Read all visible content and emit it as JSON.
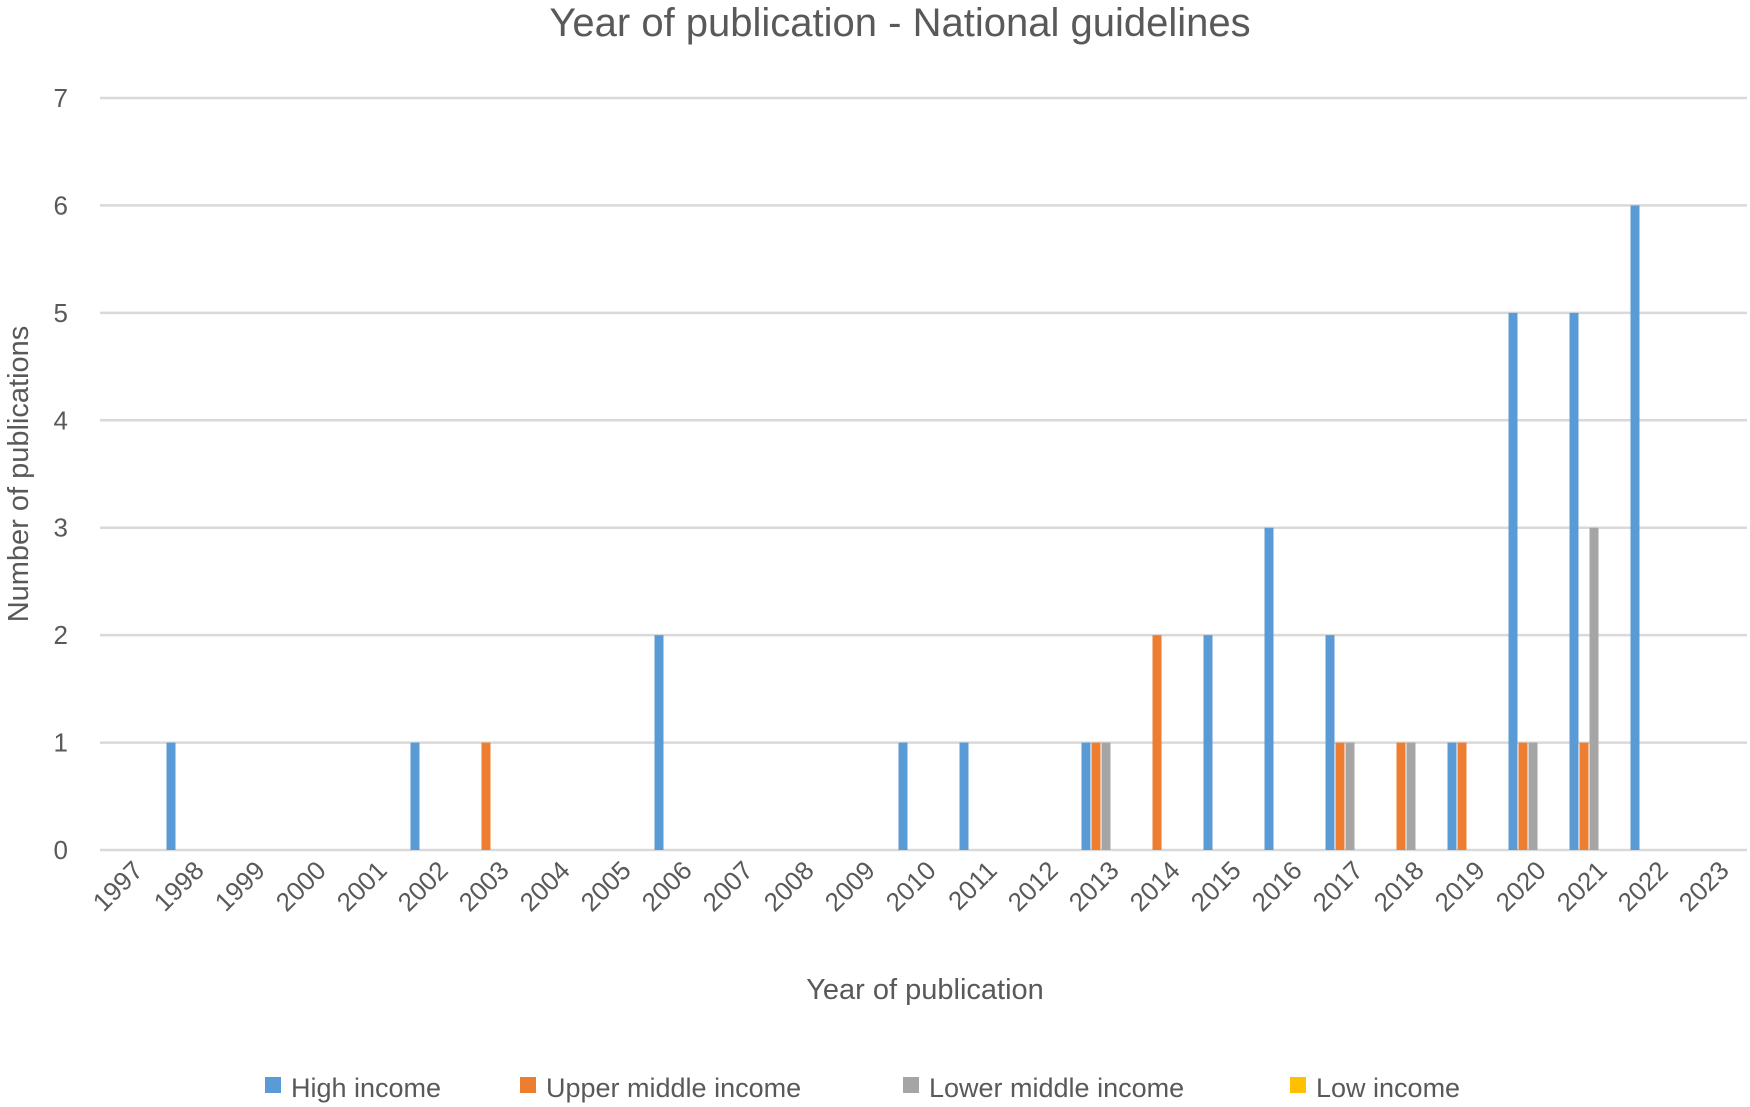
{
  "chart_data": {
    "type": "bar",
    "title": "Year of publication - National guidelines",
    "xlabel": "Year of publication",
    "ylabel": "Number of publications",
    "ylim": [
      0,
      7
    ],
    "yticks": [
      "0",
      "1",
      "2",
      "3",
      "4",
      "5",
      "6",
      "7"
    ],
    "grid": true,
    "legend_position": "bottom",
    "categories": [
      "1997",
      "1998",
      "1999",
      "2000",
      "2001",
      "2002",
      "2003",
      "2004",
      "2005",
      "2006",
      "2007",
      "2008",
      "2009",
      "2010",
      "2011",
      "2012",
      "2013",
      "2014",
      "2015",
      "2016",
      "2017",
      "2018",
      "2019",
      "2020",
      "2021",
      "2022",
      "2023"
    ],
    "series": [
      {
        "name": "High income",
        "color": "#5B9BD5",
        "values": [
          0,
          1,
          0,
          0,
          0,
          1,
          0,
          0,
          0,
          2,
          0,
          0,
          0,
          1,
          1,
          0,
          1,
          0,
          2,
          3,
          2,
          0,
          1,
          5,
          5,
          6,
          0
        ]
      },
      {
        "name": "Upper middle income",
        "color": "#ED7D31",
        "values": [
          0,
          0,
          0,
          0,
          0,
          0,
          1,
          0,
          0,
          0,
          0,
          0,
          0,
          0,
          0,
          0,
          1,
          2,
          0,
          0,
          1,
          1,
          1,
          1,
          1,
          0,
          0
        ]
      },
      {
        "name": "Lower middle income",
        "color": "#A5A5A5",
        "values": [
          0,
          0,
          0,
          0,
          0,
          0,
          0,
          0,
          0,
          0,
          0,
          0,
          0,
          0,
          0,
          0,
          1,
          0,
          0,
          0,
          1,
          1,
          0,
          1,
          3,
          0,
          0
        ]
      },
      {
        "name": "Low income",
        "color": "#FFC000",
        "values": [
          0,
          0,
          0,
          0,
          0,
          0,
          0,
          0,
          0,
          0,
          0,
          0,
          0,
          0,
          0,
          0,
          0,
          0,
          0,
          0,
          0,
          0,
          0,
          0,
          0,
          0,
          0
        ]
      }
    ]
  }
}
